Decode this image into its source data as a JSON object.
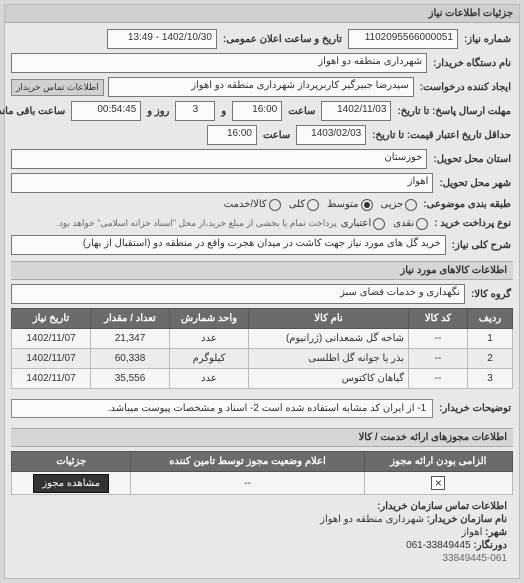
{
  "panel_title": "جزئیات اطلاعات نیاز",
  "fields": {
    "request_no_label": "شماره نیاز:",
    "request_no": "1102095566000051",
    "announce_label": "تاریخ و ساعت اعلان عمومی:",
    "announce_value": "1402/10/30 - 13:49",
    "buyer_org_label": "نام دستگاه خریدار:",
    "buyer_org": "شهرداری منطقه دو اهواز",
    "requester_label": "ایجاد کننده درخواست:",
    "requester": "سیدرضا جبیرگیر کاربرپرداز  شهرداری منطقه دو اهواز",
    "contact_btn": "اطلاعات تماس خریدار",
    "deadline_label": "مهلت ارسال پاسخ: تا تاریخ:",
    "deadline_date": "1402/11/03",
    "time_label": "ساعت",
    "deadline_time": "16:00",
    "and_label": "و",
    "remain_days": "3",
    "day_label": "روز و",
    "remain_clock": "00:54:45",
    "remain_label": "ساعت باقی مانده",
    "validity_label": "حداقل تاریخ اعتبار قیمت: تا تاریخ:",
    "validity_date": "1403/02/03",
    "validity_time": "16:00",
    "province_label": "استان محل تحویل:",
    "province": "خوزستان",
    "city_label": "شهر محل تحویل:",
    "city": "اهواز",
    "budget_label": "طبقه بندی موضوعی:",
    "budget_opts": [
      "جزیی",
      "متوسط",
      "کلی",
      "کالا/خدمت"
    ],
    "budget_selected": 1,
    "payment_label": "نوع پرداخت خرید :",
    "payment_opts": [
      "نقدی",
      "اعتباری"
    ],
    "payment_note": "پرداخت تمام یا بخشی از مبلغ خرید،از محل \"اسناد خزانه اسلامی\" خواهد بود.",
    "desc_label": "شرح کلی نیاز:",
    "desc": "خرید گل های مورد نیاز جهت کاشت در میدان هجرت واقع در منطقه دو (استقبال از بهار)",
    "goods_section": "اطلاعات کالاهای مورد نیاز",
    "goods_group_label": "گروه کالا:",
    "goods_group": "نگهداری و خدمات فضای سبز",
    "note_label": "توضیحات خریدار:",
    "note": "1- از ایران کد مشابه استفاده شده است 2- اسناد و مشخصات پیوست میباشد.",
    "license_section": "اطلاعات مجوزهای ارائه خدمت / کالا",
    "footer_title": "اطلاعات تماس سازمان خریدار:",
    "footer_org_label": "نام سازمان خریدار:",
    "footer_org": "شهرداری منطقه دو اهواز",
    "footer_city_label": "شهر:",
    "footer_city": "اهواز",
    "footer_tel_label": "دورنگار:",
    "footer_tel": "33849445-061",
    "footer_tel2": "33849445-061"
  },
  "table": {
    "headers": [
      "ردیف",
      "کد کالا",
      "نام کالا",
      "واحد شمارش",
      "تعداد / مقدار",
      "تاریخ نیاز"
    ],
    "rows": [
      [
        "1",
        "--",
        "شاخه گل شمعدانی (ژرانیوم)",
        "عدد",
        "21,347",
        "1402/11/07"
      ],
      [
        "2",
        "--",
        "بذر یا جوانه گل اطلسی",
        "کیلوگرم",
        "60,338",
        "1402/11/07"
      ],
      [
        "3",
        "--",
        "گیاهان کاکتوس",
        "عدد",
        "35,556",
        "1402/11/07"
      ]
    ],
    "col_widths": [
      "36px",
      "50px",
      "auto",
      "70px",
      "70px",
      "70px"
    ]
  },
  "license_table": {
    "headers": [
      "الزامی بودن ارائه مجوز",
      "اعلام وضعیت مجوز توسط تامین کننده",
      "جزئیات"
    ],
    "mandatory_checked": true,
    "status": "--",
    "details_btn": "مشاهده مجوز"
  },
  "colors": {
    "panel_bg": "#e8e8e8",
    "header_bg": "#cfcfcf",
    "th_bg": "#6b6b6b",
    "th_color": "#ffffff",
    "input_bg": "#fafafa",
    "border": "#888888"
  }
}
